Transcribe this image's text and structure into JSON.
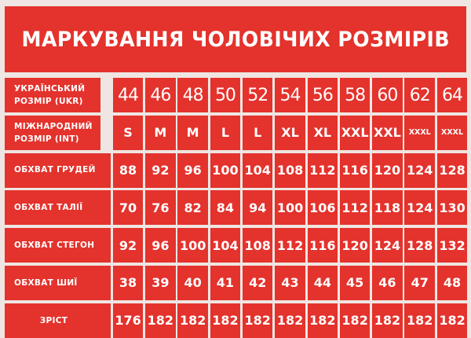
{
  "title": "МАРКУВАННЯ ЧОЛОВІЧИХ РОЗМІРІВ",
  "colors": {
    "red": "#e4322c",
    "background": "#efe6e3",
    "text": "#ffffff"
  },
  "rows": [
    {
      "label": "УКРАЇНСЬКИЙ РОЗМІР (UKR)",
      "values": [
        "44",
        "46",
        "48",
        "50",
        "52",
        "54",
        "56",
        "58",
        "60",
        "62",
        "64"
      ]
    },
    {
      "label": "МІЖНАРОДНИЙ РОЗМІР (INT)",
      "values": [
        "S",
        "M",
        "M",
        "L",
        "L",
        "XL",
        "XL",
        "XXL",
        "XXL",
        "XXXL",
        "XXXL"
      ]
    },
    {
      "label": "ОБХВАТ ГРУДЕЙ",
      "values": [
        "88",
        "92",
        "96",
        "100",
        "104",
        "108",
        "112",
        "116",
        "120",
        "124",
        "128"
      ]
    },
    {
      "label": "ОБХВАТ ТАЛІЇ",
      "values": [
        "70",
        "76",
        "82",
        "84",
        "94",
        "100",
        "106",
        "112",
        "118",
        "124",
        "130"
      ]
    },
    {
      "label": "ОБХВАТ СТЕГОН",
      "values": [
        "92",
        "96",
        "100",
        "104",
        "108",
        "112",
        "116",
        "120",
        "124",
        "128",
        "132"
      ]
    },
    {
      "label": "ОБХВАТ ШИЇ",
      "values": [
        "38",
        "39",
        "40",
        "41",
        "42",
        "43",
        "44",
        "45",
        "46",
        "47",
        "48"
      ]
    },
    {
      "label": "ЗРІСТ",
      "values": [
        "176",
        "182",
        "182",
        "182",
        "182",
        "182",
        "182",
        "182",
        "182",
        "182",
        "182"
      ]
    }
  ]
}
